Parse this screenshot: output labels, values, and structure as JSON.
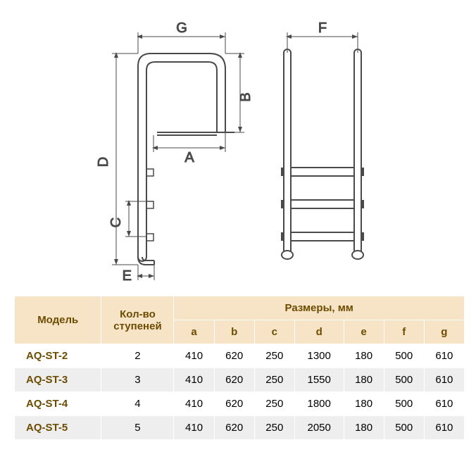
{
  "diagram": {
    "labels": {
      "A": "A",
      "B": "B",
      "C": "C",
      "D": "D",
      "E": "E",
      "F": "F",
      "G": "G"
    },
    "stroke_color": "#4a4a4a",
    "dim_color": "#4a4a4a",
    "label_color": "#4a4a4a",
    "tube_width": 10,
    "label_fontsize": 20
  },
  "table": {
    "headers": {
      "model": "Модель",
      "steps": "Кол-во ступеней",
      "dimensions": "Размеры, мм",
      "cols": [
        "a",
        "b",
        "c",
        "d",
        "e",
        "f",
        "g"
      ]
    },
    "rows": [
      {
        "model": "AQ-ST-2",
        "steps": 2,
        "vals": [
          410,
          620,
          250,
          1300,
          180,
          500,
          610
        ]
      },
      {
        "model": "AQ-ST-3",
        "steps": 3,
        "vals": [
          410,
          620,
          250,
          1550,
          180,
          500,
          610
        ]
      },
      {
        "model": "AQ-ST-4",
        "steps": 4,
        "vals": [
          410,
          620,
          250,
          1800,
          180,
          500,
          610
        ]
      },
      {
        "model": "AQ-ST-5",
        "steps": 5,
        "vals": [
          410,
          620,
          250,
          2050,
          180,
          500,
          610
        ]
      }
    ],
    "header_bg": "#f7e3c6",
    "header_text": "#6c4c00",
    "row_odd_bg": "#eeeeee",
    "row_even_bg": "#ffffff",
    "model_text_color": "#6c4c00"
  }
}
